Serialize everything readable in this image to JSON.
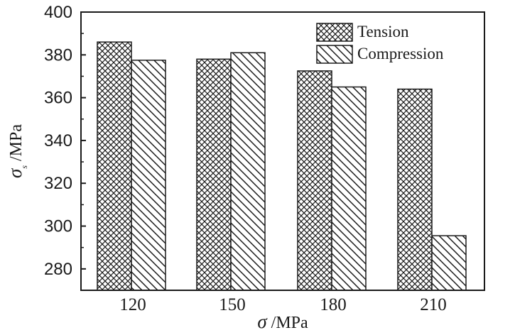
{
  "chart_data": {
    "type": "bar",
    "categories": [
      "120",
      "150",
      "180",
      "210"
    ],
    "series": [
      {
        "name": "Tension",
        "values": [
          386,
          378,
          372.5,
          364
        ],
        "pattern": "crosshatch"
      },
      {
        "name": "Compression",
        "values": [
          377.5,
          381,
          365,
          295.5
        ],
        "pattern": "diagonal"
      }
    ],
    "ylim": [
      270,
      400
    ],
    "yticks": [
      "280",
      "300",
      "320",
      "340",
      "360",
      "380",
      "400"
    ],
    "xlabel": {
      "symbol": "σ",
      "unit": " /MPa"
    },
    "ylabel": {
      "symbol": "σ",
      "subscript": "s",
      "unit": " /MPa"
    },
    "legend_position": "top-right",
    "grid": false,
    "colors": {
      "stroke": "#1a1a1a",
      "fill": "#ffffff"
    }
  }
}
